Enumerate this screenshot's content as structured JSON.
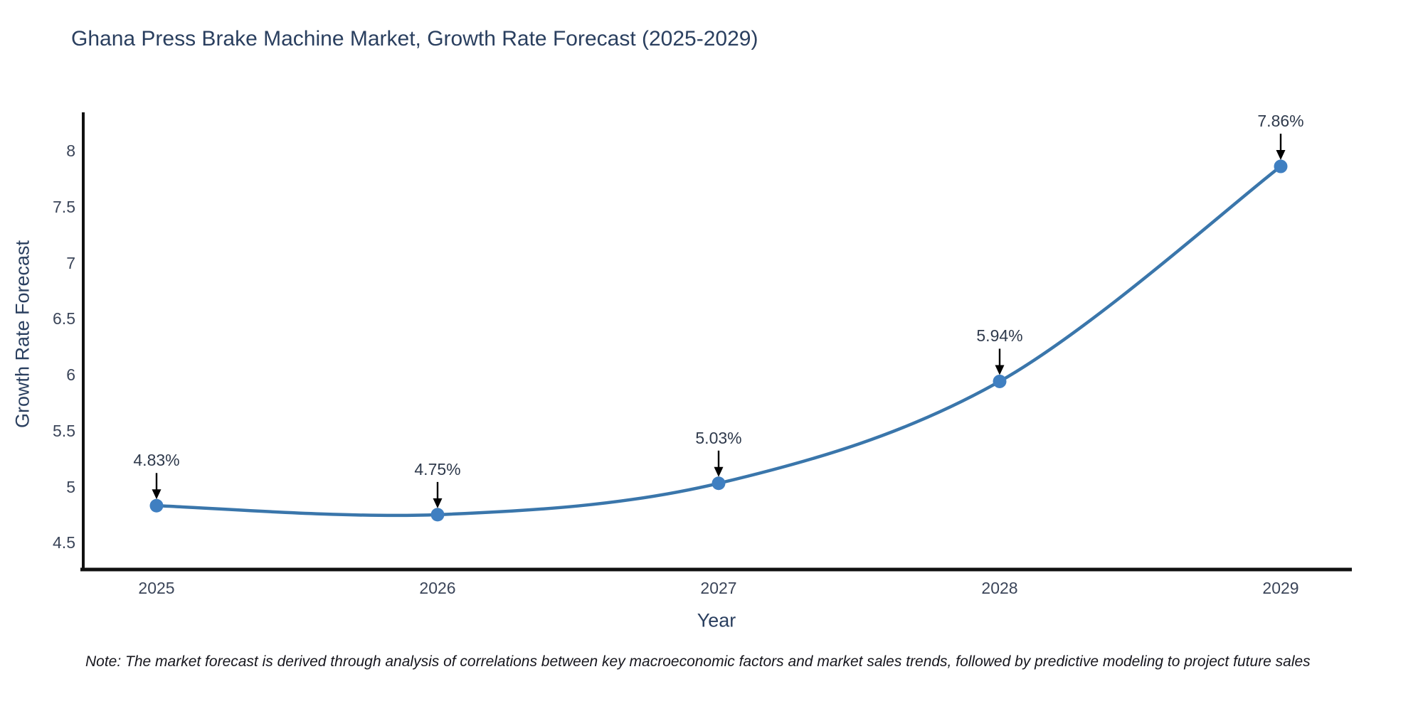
{
  "chart": {
    "note": "Note: The market forecast is derived through analysis of correlations between key macroeconomic factors and market sales trends, followed by predictive modeling to project future sales"
  },
  "chart_data": {
    "type": "line",
    "title": "Ghana Press Brake Machine Market, Growth Rate Forecast (2025-2029)",
    "xlabel": "Year",
    "ylabel": "Growth Rate Forecast",
    "categories": [
      "2025",
      "2026",
      "2027",
      "2028",
      "2029"
    ],
    "series": [
      {
        "name": "Growth Rate Forecast",
        "values": [
          4.83,
          4.75,
          5.03,
          5.94,
          7.86
        ]
      }
    ],
    "point_labels": [
      "4.83%",
      "4.75%",
      "5.03%",
      "5.94%",
      "7.86%"
    ],
    "ytick_values": [
      4.5,
      5,
      5.5,
      6,
      6.5,
      7,
      7.5,
      8
    ],
    "ytick_labels": [
      "4.5",
      "5",
      "5.5",
      "6",
      "6.5",
      "7",
      "7.5",
      "8"
    ],
    "ylim": [
      4.2,
      8.35
    ],
    "grid": false,
    "legend_position": "none",
    "curve": "spline",
    "marker_annotation_style": "text-with-down-arrow",
    "colors": {
      "line": "#3a76ab",
      "marker": "#3f7fc1",
      "axis": "#111111",
      "arrow": "#000000",
      "title_text": "#2a3f5f",
      "tick_text": "#3b4559",
      "note_text": "#16161d",
      "background": "#ffffff"
    }
  }
}
